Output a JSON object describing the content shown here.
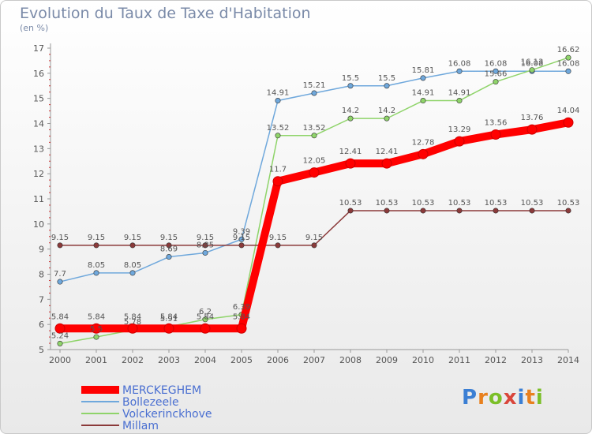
{
  "header": {
    "title": "Evolution du Taux de Taxe d'Habitation",
    "unit": "(en %)"
  },
  "logo": {
    "text": "Proxiti",
    "colors": [
      "#3b7fd4",
      "#e8801e",
      "#7bbf28",
      "#d9463b",
      "#3b7fd4",
      "#e8801e",
      "#7bbf28"
    ]
  },
  "chart_data": {
    "type": "line",
    "title": "Evolution du Taux de Taxe d'Habitation",
    "ylabel": "(en %)",
    "x": [
      2000,
      2001,
      2002,
      2003,
      2004,
      2005,
      2006,
      2007,
      2008,
      2009,
      2010,
      2011,
      2012,
      2013,
      2014
    ],
    "ylim": [
      5,
      17
    ],
    "yticks": [
      5,
      6,
      7,
      8,
      9,
      10,
      11,
      12,
      13,
      14,
      15,
      16,
      17
    ],
    "grid": false,
    "legend_position": "bottom-left",
    "series": [
      {
        "name": "MERCKEGHEM",
        "color": "#ff0000",
        "emphasis": true,
        "values": [
          5.84,
          5.84,
          5.84,
          5.84,
          5.84,
          5.84,
          11.7,
          12.05,
          12.41,
          12.41,
          12.78,
          13.29,
          13.56,
          13.76,
          14.04
        ],
        "labels": [
          "5.84",
          "5.84",
          "5.84",
          "5.84",
          "5.84",
          "5.84",
          "11.7",
          "12.05",
          "12.41",
          "12.41",
          "12.78",
          "13.29",
          "13.56",
          "13.76",
          "14.04"
        ]
      },
      {
        "name": "Bollezeele",
        "color": "#6fa8dc",
        "emphasis": false,
        "values": [
          7.7,
          8.05,
          8.05,
          8.69,
          8.85,
          9.39,
          14.91,
          15.21,
          15.5,
          15.5,
          15.81,
          16.08,
          16.08,
          16.08,
          16.08
        ],
        "labels": [
          "7.7",
          "8.05",
          "8.05",
          "8.69",
          "8.85",
          "9.39",
          "14.91",
          "15.21",
          "15.5",
          "15.5",
          "15.81",
          "16.08",
          "16.08",
          "16.08",
          "16.08"
        ]
      },
      {
        "name": "Volckerinckhove",
        "color": "#8fd46a",
        "emphasis": false,
        "values": [
          5.24,
          5.5,
          5.78,
          5.91,
          6.2,
          6.39,
          13.52,
          13.52,
          14.2,
          14.2,
          14.91,
          14.91,
          15.66,
          16.13,
          16.62
        ],
        "labels": [
          "5.24",
          "5.5",
          "5.78",
          "5.91",
          "6.2",
          "6.39",
          "13.52",
          "13.52",
          "14.2",
          "14.2",
          "14.91",
          "14.91",
          "15.66",
          "16.13",
          "16.62"
        ]
      },
      {
        "name": "Millam",
        "color": "#8b3a3a",
        "emphasis": false,
        "values": [
          9.15,
          9.15,
          9.15,
          9.15,
          9.15,
          9.15,
          9.15,
          9.15,
          10.53,
          10.53,
          10.53,
          10.53,
          10.53,
          10.53,
          10.53
        ],
        "labels": [
          "9.15",
          "9.15",
          "9.15",
          "9.15",
          "9.15",
          "9.15",
          "9.15",
          "9.15",
          "10.53",
          "10.53",
          "10.53",
          "10.53",
          "10.53",
          "10.53",
          "10.53"
        ]
      }
    ]
  }
}
